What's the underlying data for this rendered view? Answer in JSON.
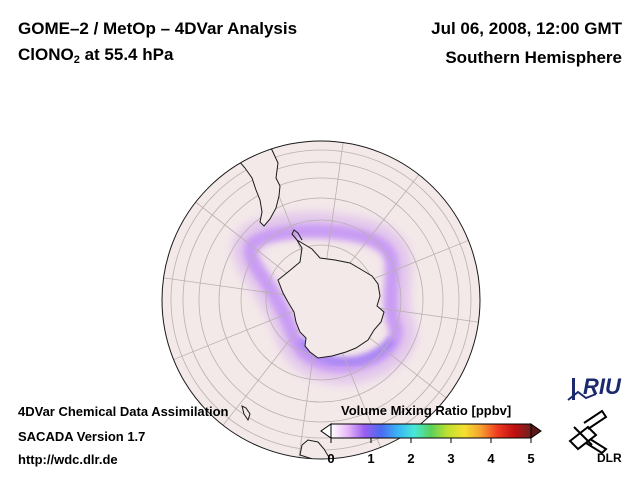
{
  "header": {
    "title": "GOME–2 / MetOp – 4DVar Analysis",
    "species_main": "ClONO",
    "species_sub": "2",
    "species_level": " at 55.4 hPa",
    "datetime": "Jul 06, 2008, 12:00 GMT",
    "region": "Southern Hemisphere"
  },
  "footer": {
    "line1": "4DVar Chemical Data Assimilation",
    "line2": "SACADA Version 1.7",
    "line3": "http://wdc.dlr.de"
  },
  "colorbar": {
    "label": "Volume Mixing Ratio [ppbv]",
    "ticks": [
      "0",
      "1",
      "2",
      "3",
      "4",
      "5"
    ],
    "min": 0,
    "max": 5,
    "colors": [
      "#ffffff",
      "#e8b8f8",
      "#9a60f0",
      "#4c6af0",
      "#3ab4f5",
      "#48e8d8",
      "#5ad05a",
      "#c0e030",
      "#f5e030",
      "#f5a030",
      "#f03a20",
      "#c01010",
      "#702020"
    ]
  },
  "logos": {
    "riu": "RIU",
    "dlr": "DLR"
  },
  "map": {
    "background_color": "#f4e9e9",
    "projection": "orthographic",
    "center": "South Pole"
  }
}
